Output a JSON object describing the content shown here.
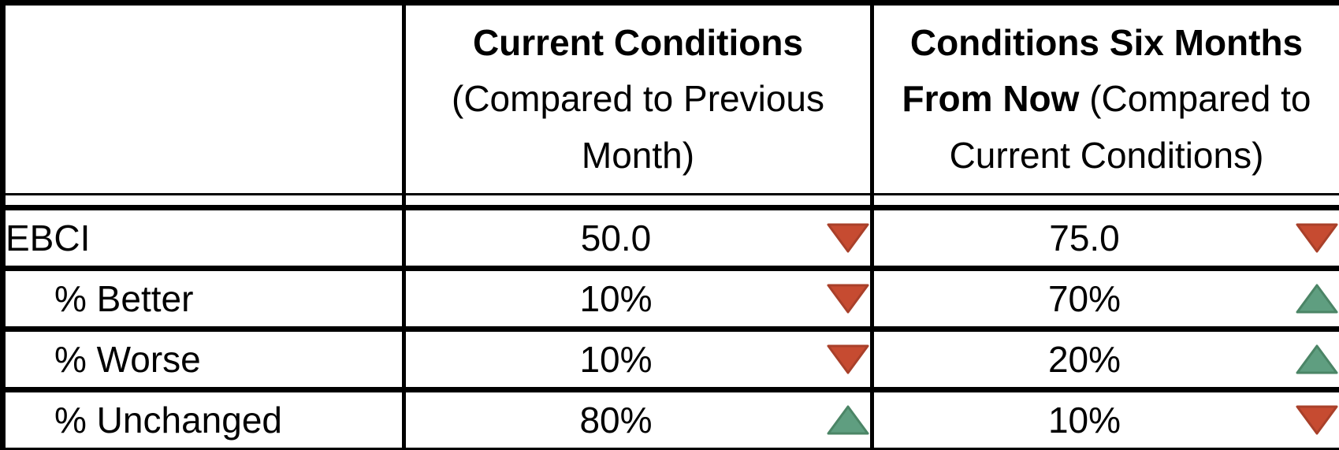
{
  "table": {
    "columns": [
      {
        "label": ""
      },
      {
        "bold": "Current Conditions",
        "normal": "(Compared to Previous Month)"
      },
      {
        "bold": "Conditions Six Months From Now",
        "normal": "(Compared to Current Conditions)"
      }
    ],
    "rows": [
      {
        "label": "EBCI",
        "indent": false,
        "current": {
          "value": "50.0",
          "trend": "down"
        },
        "future": {
          "value": "75.0",
          "trend": "down"
        }
      },
      {
        "label": "% Better",
        "indent": true,
        "current": {
          "value": "10%",
          "trend": "down"
        },
        "future": {
          "value": "70%",
          "trend": "up"
        }
      },
      {
        "label": "% Worse",
        "indent": true,
        "current": {
          "value": "10%",
          "trend": "down"
        },
        "future": {
          "value": "20%",
          "trend": "up"
        }
      },
      {
        "label": "% Unchanged",
        "indent": true,
        "current": {
          "value": "80%",
          "trend": "up"
        },
        "future": {
          "value": "10%",
          "trend": "down"
        }
      }
    ],
    "colors": {
      "trend_up": "#5F9E80",
      "trend_up_stroke": "#4B8566",
      "trend_down": "#C64B31",
      "trend_down_stroke": "#A9402A"
    }
  },
  "chart_data": {
    "type": "table",
    "columns": [
      "",
      "Current Conditions (Compared to Previous Month)",
      "Conditions Six Months From Now (Compared to Current Conditions)"
    ],
    "rows": [
      {
        "label": "EBCI",
        "current_value": 50.0,
        "current_trend": "down",
        "six_months_value": 75.0,
        "six_months_trend": "down"
      },
      {
        "label": "% Better",
        "current_value": "10%",
        "current_trend": "down",
        "six_months_value": "70%",
        "six_months_trend": "up"
      },
      {
        "label": "% Worse",
        "current_value": "10%",
        "current_trend": "down",
        "six_months_value": "20%",
        "six_months_trend": "up"
      },
      {
        "label": "% Unchanged",
        "current_value": "80%",
        "current_trend": "up",
        "six_months_value": "10%",
        "six_months_trend": "down"
      }
    ],
    "legend": {
      "up_triangle": "increase (green)",
      "down_triangle": "decrease (red)"
    }
  }
}
